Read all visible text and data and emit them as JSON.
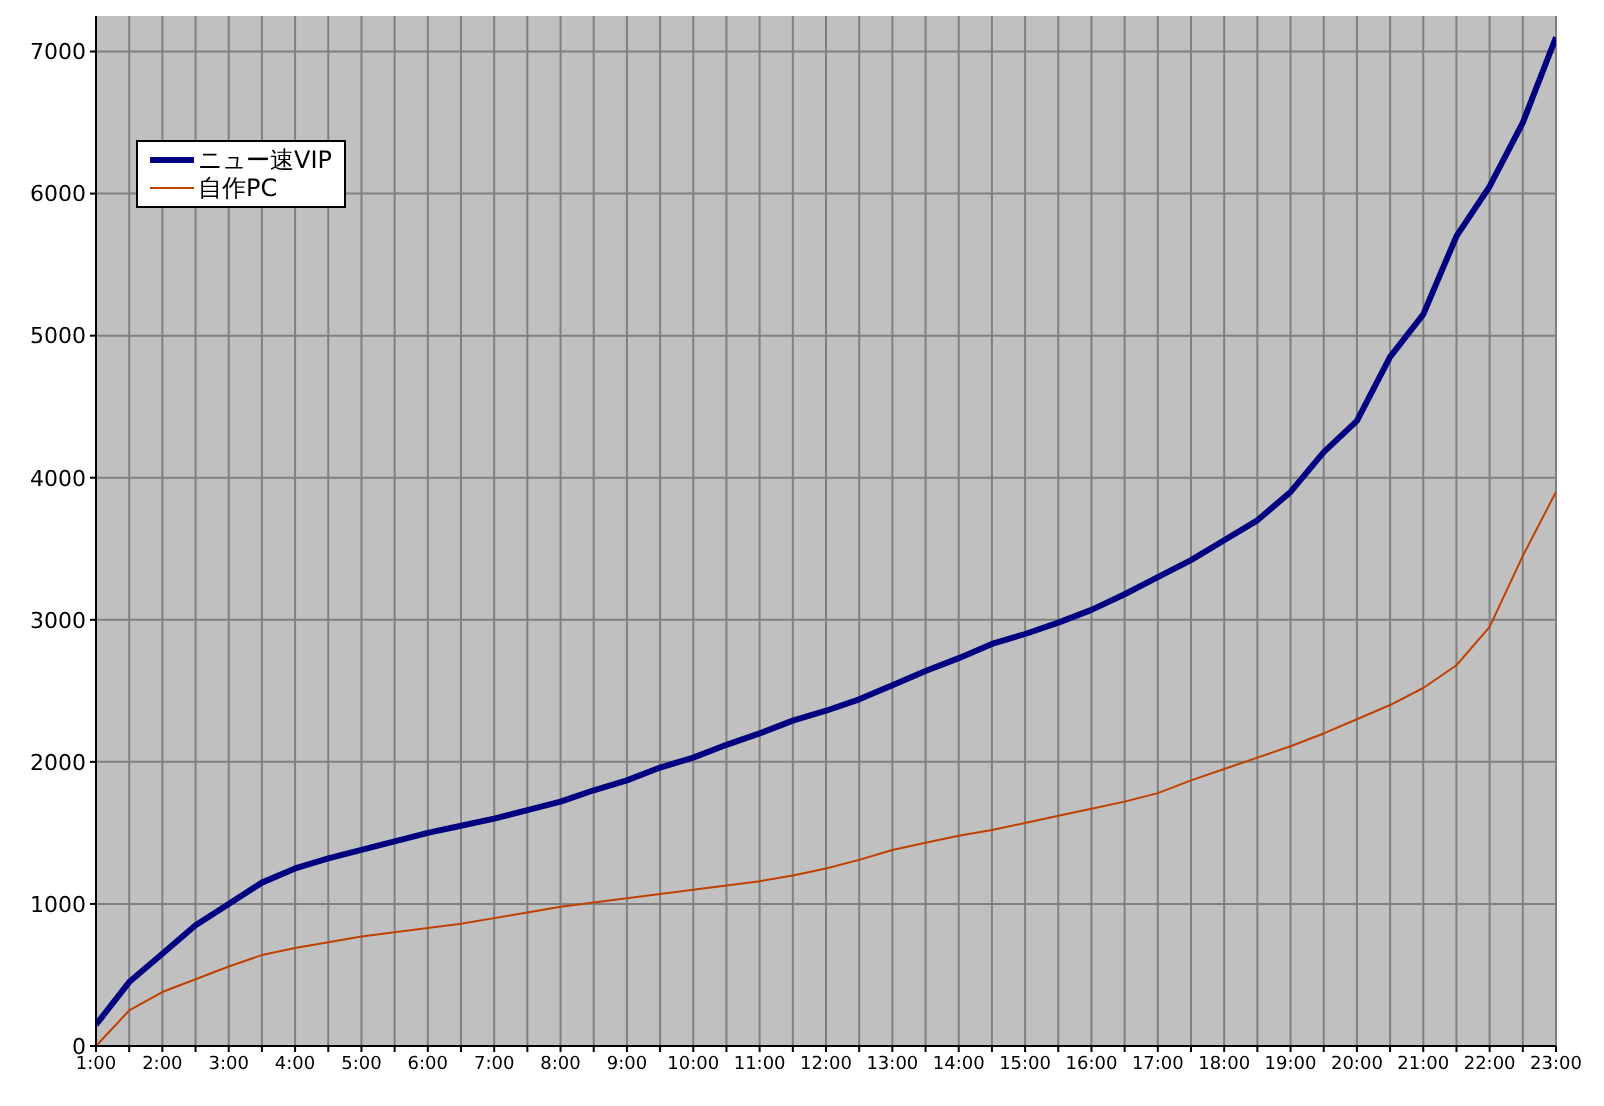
{
  "chart_data": {
    "type": "line",
    "x": [
      1,
      1.5,
      2,
      2.5,
      3,
      3.5,
      4,
      4.5,
      5,
      5.5,
      6,
      6.5,
      7,
      7.5,
      8,
      8.5,
      9,
      9.5,
      10,
      10.5,
      11,
      11.5,
      12,
      12.5,
      13,
      13.5,
      14,
      14.5,
      15,
      15.5,
      16,
      16.5,
      17,
      17.5,
      18,
      18.5,
      19,
      19.5,
      20,
      20.5,
      21,
      21.5,
      22,
      22.5,
      23
    ],
    "series": [
      {
        "name": "ニュー速VIP",
        "color": "#000080",
        "values": [
          150,
          450,
          650,
          850,
          1000,
          1150,
          1250,
          1320,
          1380,
          1440,
          1500,
          1550,
          1600,
          1660,
          1720,
          1800,
          1870,
          1960,
          2030,
          2120,
          2200,
          2290,
          2360,
          2440,
          2540,
          2640,
          2730,
          2830,
          2900,
          2980,
          3070,
          3180,
          3300,
          3420,
          3560,
          3700,
          3900,
          4180,
          4400,
          4850,
          5150,
          5700,
          6050,
          6500,
          7100
        ]
      },
      {
        "name": "自作PC",
        "color": "#c04000",
        "values": [
          0,
          250,
          380,
          470,
          560,
          640,
          690,
          730,
          770,
          800,
          830,
          860,
          900,
          940,
          980,
          1010,
          1040,
          1070,
          1100,
          1130,
          1160,
          1200,
          1250,
          1310,
          1380,
          1430,
          1480,
          1520,
          1570,
          1620,
          1670,
          1720,
          1780,
          1870,
          1950,
          2030,
          2110,
          2200,
          2300,
          2400,
          2520,
          2680,
          2950,
          3450,
          3900
        ]
      }
    ],
    "xlim": [
      1,
      23
    ],
    "xticks": [
      {
        "value": 1,
        "label": "1:00"
      },
      {
        "value": 1.5,
        "label": null
      },
      {
        "value": 2,
        "label": "2:00"
      },
      {
        "value": 2.5,
        "label": null
      },
      {
        "value": 3,
        "label": "3:00"
      },
      {
        "value": 3.5,
        "label": null
      },
      {
        "value": 4,
        "label": "4:00"
      },
      {
        "value": 4.5,
        "label": null
      },
      {
        "value": 5,
        "label": "5:00"
      },
      {
        "value": 5.5,
        "label": null
      },
      {
        "value": 6,
        "label": "6:00"
      },
      {
        "value": 6.5,
        "label": null
      },
      {
        "value": 7,
        "label": "7:00"
      },
      {
        "value": 7.5,
        "label": null
      },
      {
        "value": 8,
        "label": "8:00"
      },
      {
        "value": 8.5,
        "label": null
      },
      {
        "value": 9,
        "label": "9:00"
      },
      {
        "value": 9.5,
        "label": null
      },
      {
        "value": 10,
        "label": "10:00"
      },
      {
        "value": 10.5,
        "label": null
      },
      {
        "value": 11,
        "label": "11:00"
      },
      {
        "value": 11.5,
        "label": null
      },
      {
        "value": 12,
        "label": "12:00"
      },
      {
        "value": 12.5,
        "label": null
      },
      {
        "value": 13,
        "label": "13:00"
      },
      {
        "value": 13.5,
        "label": null
      },
      {
        "value": 14,
        "label": "14:00"
      },
      {
        "value": 14.5,
        "label": null
      },
      {
        "value": 15,
        "label": "15:00"
      },
      {
        "value": 15.5,
        "label": null
      },
      {
        "value": 16,
        "label": "16:00"
      },
      {
        "value": 16.5,
        "label": null
      },
      {
        "value": 17,
        "label": "17:00"
      },
      {
        "value": 17.5,
        "label": null
      },
      {
        "value": 18,
        "label": "18:00"
      },
      {
        "value": 18.5,
        "label": null
      },
      {
        "value": 19,
        "label": "19:00"
      },
      {
        "value": 19.5,
        "label": null
      },
      {
        "value": 20,
        "label": "20:00"
      },
      {
        "value": 20.5,
        "label": null
      },
      {
        "value": 21,
        "label": "21:00"
      },
      {
        "value": 21.5,
        "label": null
      },
      {
        "value": 22,
        "label": "22:00"
      },
      {
        "value": 22.5,
        "label": null
      },
      {
        "value": 23,
        "label": "23:00"
      }
    ],
    "ylim": [
      0,
      7250
    ],
    "yticks": [
      0,
      1000,
      2000,
      3000,
      4000,
      5000,
      6000,
      7000
    ],
    "grid": true,
    "legend": "top left",
    "marker": "none",
    "line_style": "solid"
  }
}
